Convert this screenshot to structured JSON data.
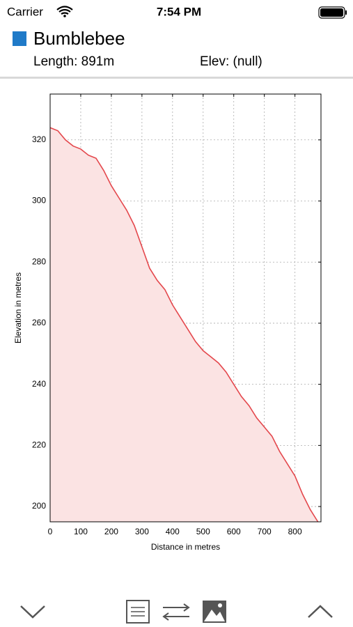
{
  "status_bar": {
    "carrier": "Carrier",
    "time": "7:54 PM"
  },
  "header": {
    "title": "Bumblebee",
    "length": "Length: 891m",
    "elevation": "Elev: (null)"
  },
  "chart_data": {
    "type": "area",
    "xlabel": "Distance in metres",
    "ylabel": "Elevation in metres",
    "x": [
      0,
      25,
      50,
      75,
      100,
      125,
      150,
      175,
      200,
      225,
      250,
      275,
      300,
      325,
      350,
      375,
      400,
      425,
      450,
      475,
      500,
      525,
      550,
      575,
      600,
      625,
      650,
      675,
      700,
      725,
      750,
      775,
      800,
      825,
      850,
      875
    ],
    "values": [
      324,
      323,
      320,
      318,
      317,
      315,
      314,
      310,
      305,
      301,
      297,
      292,
      285,
      278,
      274,
      271,
      266,
      262,
      258,
      254,
      251,
      249,
      247,
      244,
      240,
      236,
      233,
      229,
      226,
      223,
      218,
      214,
      210,
      204,
      199,
      195
    ],
    "color": "#e4474c",
    "fill_color": "#fbe3e3",
    "xlim": [
      0,
      885
    ],
    "xticks": [
      0,
      100,
      200,
      300,
      400,
      500,
      600,
      700,
      800
    ],
    "ylim": [
      195,
      335
    ],
    "yticks": [
      200,
      220,
      240,
      260,
      280,
      300,
      320
    ],
    "grid": true
  }
}
